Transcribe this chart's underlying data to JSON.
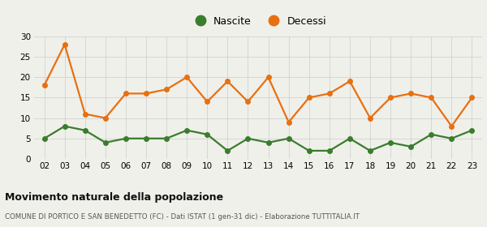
{
  "years": [
    "02",
    "03",
    "04",
    "05",
    "06",
    "07",
    "08",
    "09",
    "10",
    "11",
    "12",
    "13",
    "14",
    "15",
    "16",
    "17",
    "18",
    "19",
    "20",
    "21",
    "22",
    "23"
  ],
  "nascite": [
    5,
    8,
    7,
    4,
    5,
    5,
    5,
    7,
    6,
    2,
    5,
    4,
    5,
    2,
    2,
    5,
    2,
    4,
    3,
    6,
    5,
    7
  ],
  "decessi": [
    18,
    28,
    11,
    10,
    16,
    16,
    17,
    20,
    14,
    19,
    14,
    20,
    9,
    15,
    16,
    19,
    10,
    15,
    16,
    15,
    8,
    15
  ],
  "nascite_color": "#3a7d2c",
  "decessi_color": "#e87010",
  "background_color": "#f0f0eb",
  "grid_color": "#cccccc",
  "title": "Movimento naturale della popolazione",
  "subtitle": "COMUNE DI PORTICO E SAN BENEDETTO (FC) - Dati ISTAT (1 gen-31 dic) - Elaborazione TUTTITALIA.IT",
  "ylim": [
    0,
    30
  ],
  "yticks": [
    0,
    5,
    10,
    15,
    20,
    25,
    30
  ],
  "legend_labels": [
    "Nascite",
    "Decessi"
  ],
  "marker": "o",
  "markersize": 4,
  "linewidth": 1.6
}
